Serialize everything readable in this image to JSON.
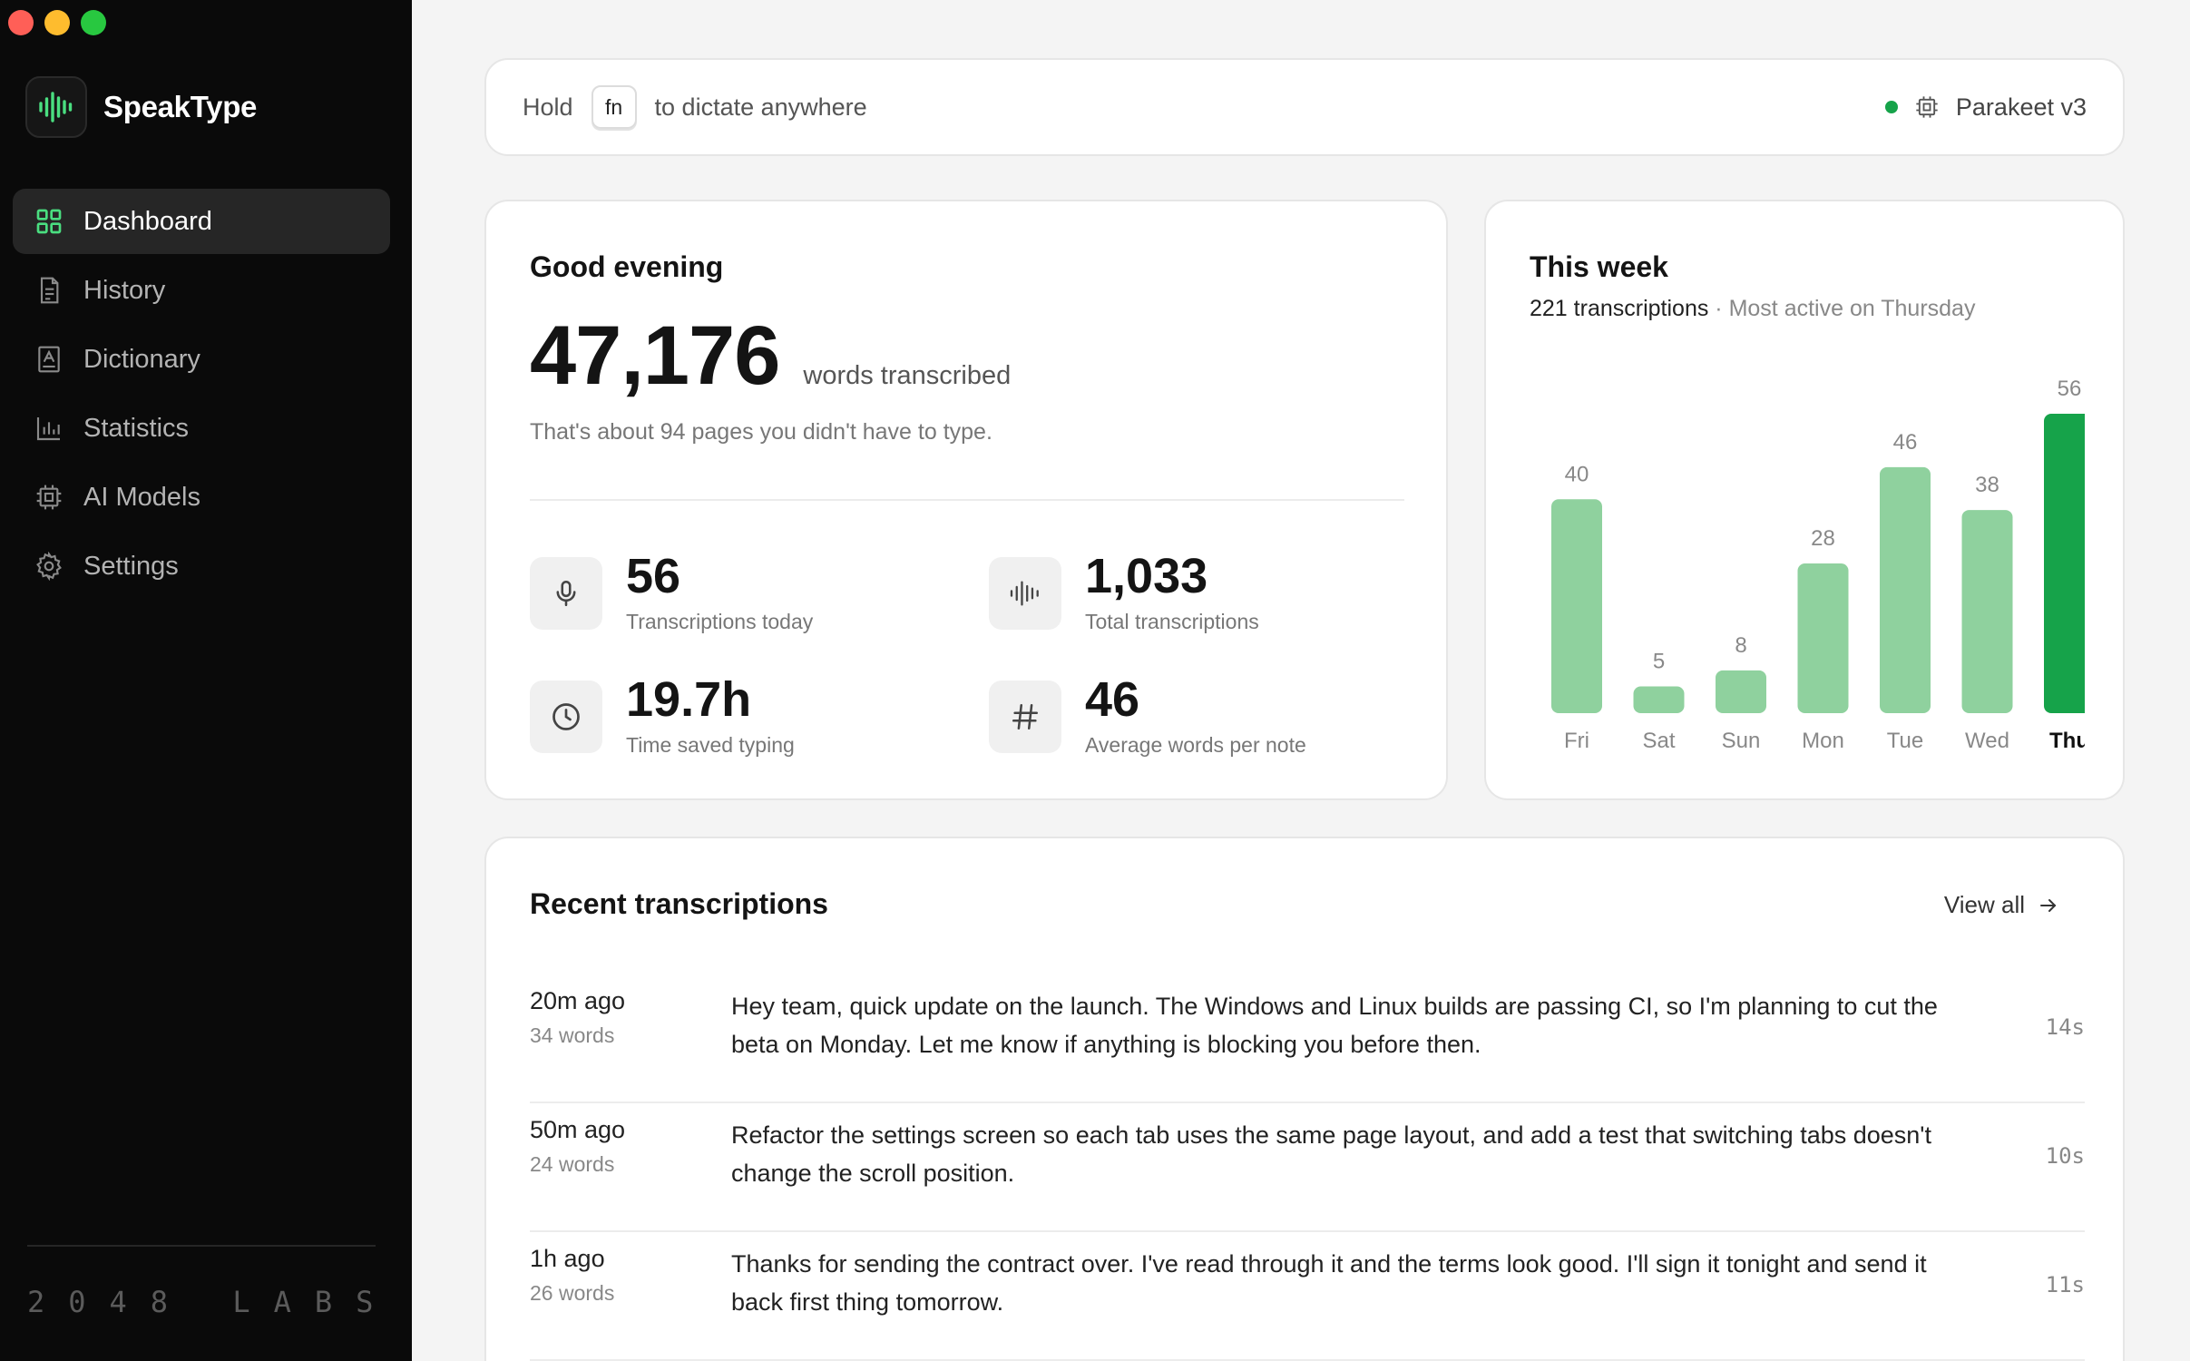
{
  "app": {
    "name": "SpeakType",
    "footer": "2048 LABS"
  },
  "sidebar": {
    "items": [
      {
        "label": "Dashboard",
        "icon": "grid-icon",
        "active": true
      },
      {
        "label": "History",
        "icon": "document-icon",
        "active": false
      },
      {
        "label": "Dictionary",
        "icon": "book-icon",
        "active": false
      },
      {
        "label": "Statistics",
        "icon": "bar-chart-icon",
        "active": false
      },
      {
        "label": "AI Models",
        "icon": "chip-icon",
        "active": false
      },
      {
        "label": "Settings",
        "icon": "gear-icon",
        "active": false
      }
    ]
  },
  "topbar": {
    "hold": "Hold",
    "key": "fn",
    "instruction": "to dictate anywhere",
    "model": "Parakeet v3",
    "status_color": "#16a34a"
  },
  "greeting": {
    "title": "Good evening",
    "words": "47,176",
    "words_unit": "words transcribed",
    "note": "That's about 94 pages you didn't have to type.",
    "stats": [
      {
        "value": "56",
        "label": "Transcriptions today",
        "icon": "microphone-icon"
      },
      {
        "value": "1,033",
        "label": "Total transcriptions",
        "icon": "waveform-icon"
      },
      {
        "value": "19.7h",
        "label": "Time saved typing",
        "icon": "clock-icon"
      },
      {
        "value": "46",
        "label": "Average words per note",
        "icon": "hash-icon"
      }
    ]
  },
  "week": {
    "title": "This week",
    "count": "221",
    "count_label": "transcriptions",
    "separator": "·",
    "most_active": "Most active on Thursday"
  },
  "chart_data": {
    "type": "bar",
    "categories": [
      "Fri",
      "Sat",
      "Sun",
      "Mon",
      "Tue",
      "Wed",
      "Thu"
    ],
    "values": [
      40,
      5,
      8,
      28,
      46,
      38,
      56
    ],
    "highlight": "Thu",
    "colors": {
      "bar": "#8fd19e",
      "highlight": "#16a34a"
    },
    "grid": false,
    "ylim": [
      0,
      56
    ]
  },
  "recent": {
    "title": "Recent transcriptions",
    "view_all": "View all",
    "rows": [
      {
        "when": "20m ago",
        "words": "34 words",
        "text": "Hey team, quick update on the launch. The Windows and Linux builds are passing CI, so I'm planning to cut the beta on Monday. Let me know if anything is blocking you before then.",
        "duration": "14s"
      },
      {
        "when": "50m ago",
        "words": "24 words",
        "text": "Refactor the settings screen so each tab uses the same page layout, and add a test that switching tabs doesn't change the scroll position.",
        "duration": "10s"
      },
      {
        "when": "1h ago",
        "words": "26 words",
        "text": "Thanks for sending the contract over. I've read through it and the terms look good. I'll sign it tonight and send it back first thing tomorrow.",
        "duration": "11s"
      }
    ]
  }
}
